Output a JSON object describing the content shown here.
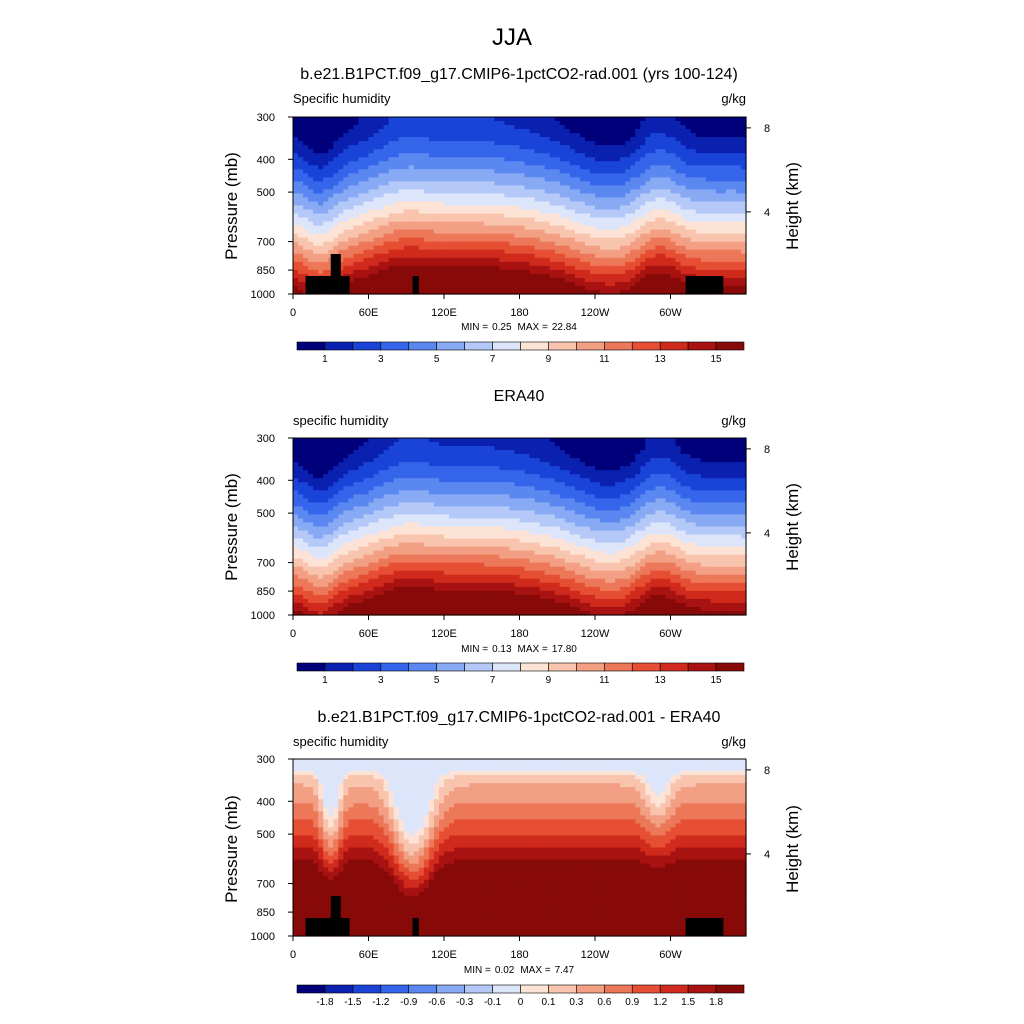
{
  "figure": {
    "title": "JJA"
  },
  "chart_data": [
    {
      "type": "heatmap",
      "title": "b.e21.B1PCT.f09_g17.CMIP6-1pctCO2-rad.001 (yrs 100-124)",
      "field_label": "Specific humidity",
      "units": "g/kg",
      "ylabel": "Pressure (mb)",
      "y2label": "Height (km)",
      "x_ticks": [
        "0",
        "60E",
        "120E",
        "180",
        "120W",
        "60W"
      ],
      "x_tick_lon": [
        0,
        60,
        120,
        180,
        240,
        300
      ],
      "xlim": [
        0,
        360
      ],
      "y_ticks": [
        "300",
        "400",
        "500",
        "700",
        "850",
        "1000"
      ],
      "y_tick_values": [
        300,
        400,
        500,
        700,
        850,
        1000
      ],
      "ylim": [
        1000,
        300
      ],
      "y2_ticks": [
        "8",
        "4"
      ],
      "y2_tick_values": [
        8,
        4
      ],
      "min_label": "MIN =",
      "min": "0.25",
      "max_label": "MAX =",
      "max": "22.84",
      "colorbar_labels": [
        "1",
        "3",
        "5",
        "7",
        "9",
        "11",
        "13",
        "15"
      ],
      "levels": [
        0,
        1,
        2,
        3,
        4,
        5,
        6,
        7,
        8,
        9,
        10,
        11,
        12,
        13,
        14,
        15
      ]
    },
    {
      "type": "heatmap",
      "title": "ERA40",
      "field_label": "specific humidity",
      "units": "g/kg",
      "ylabel": "Pressure (mb)",
      "y2label": "Height (km)",
      "x_ticks": [
        "0",
        "60E",
        "120E",
        "180",
        "120W",
        "60W"
      ],
      "x_tick_lon": [
        0,
        60,
        120,
        180,
        240,
        300
      ],
      "xlim": [
        0,
        360
      ],
      "y_ticks": [
        "300",
        "400",
        "500",
        "700",
        "850",
        "1000"
      ],
      "y_tick_values": [
        300,
        400,
        500,
        700,
        850,
        1000
      ],
      "ylim": [
        1000,
        300
      ],
      "y2_ticks": [
        "8",
        "4"
      ],
      "y2_tick_values": [
        8,
        4
      ],
      "min_label": "MIN =",
      "min": "0.13",
      "max_label": "MAX =",
      "max": "17.80",
      "colorbar_labels": [
        "1",
        "3",
        "5",
        "7",
        "9",
        "11",
        "13",
        "15"
      ],
      "levels": [
        0,
        1,
        2,
        3,
        4,
        5,
        6,
        7,
        8,
        9,
        10,
        11,
        12,
        13,
        14,
        15
      ]
    },
    {
      "type": "heatmap",
      "title": "b.e21.B1PCT.f09_g17.CMIP6-1pctCO2-rad.001 - ERA40",
      "field_label": "specific humidity",
      "units": "g/kg",
      "ylabel": "Pressure (mb)",
      "y2label": "Height (km)",
      "x_ticks": [
        "0",
        "60E",
        "120E",
        "180",
        "120W",
        "60W"
      ],
      "x_tick_lon": [
        0,
        60,
        120,
        180,
        240,
        300
      ],
      "xlim": [
        0,
        360
      ],
      "y_ticks": [
        "300",
        "400",
        "500",
        "700",
        "850",
        "1000"
      ],
      "y_tick_values": [
        300,
        400,
        500,
        700,
        850,
        1000
      ],
      "ylim": [
        1000,
        300
      ],
      "y2_ticks": [
        "8",
        "4"
      ],
      "y2_tick_values": [
        8,
        4
      ],
      "min_label": "MIN =",
      "min": "0.02",
      "max_label": "MAX =",
      "max": "7.47",
      "colorbar_labels": [
        "-1.8",
        "-1.5",
        "-1.2",
        "-0.9",
        "-0.6",
        "-0.3",
        "-0.1",
        "0",
        "0.1",
        "0.3",
        "0.6",
        "0.9",
        "1.2",
        "1.5",
        "1.8"
      ],
      "levels": [
        -1.8,
        -1.5,
        -1.2,
        -0.9,
        -0.6,
        -0.3,
        -0.1,
        0,
        0.1,
        0.3,
        0.6,
        0.9,
        1.2,
        1.5,
        1.8
      ]
    }
  ],
  "colors": {
    "palette": [
      "#00007a",
      "#0a21b0",
      "#1a44d8",
      "#3465ea",
      "#5a88f0",
      "#88aaf4",
      "#b4c9f7",
      "#dde5fb",
      "#fde3d6",
      "#f8c4ad",
      "#f29f84",
      "#ec7859",
      "#e64f33",
      "#d02a1d",
      "#a81312",
      "#870a08"
    ],
    "land_mask": "#000000"
  }
}
